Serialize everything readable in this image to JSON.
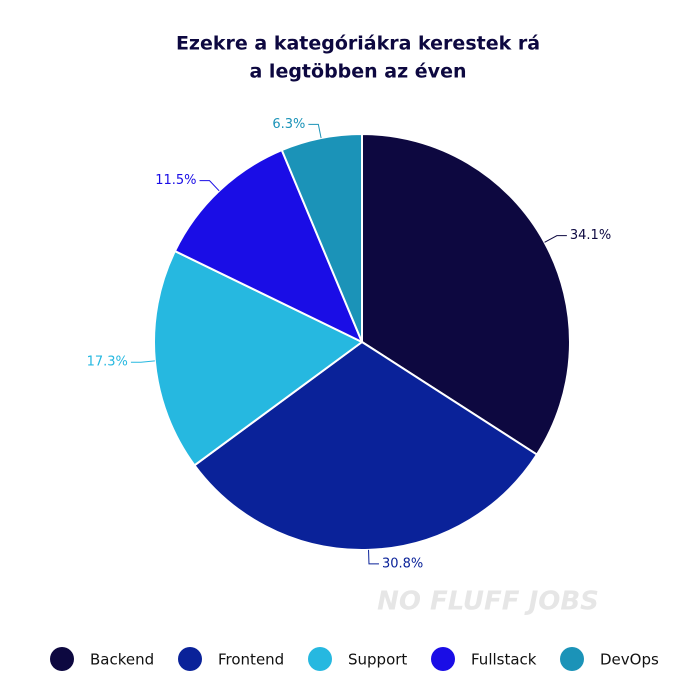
{
  "chart_data": {
    "type": "pie",
    "title": [
      "Ezekre a kategóriákra kerestek rá",
      "a legtöbben az éven"
    ],
    "categories": [
      "Backend",
      "Frontend",
      "Support",
      "Fullstack",
      "DevOps"
    ],
    "values": [
      34.1,
      30.8,
      17.3,
      11.5,
      6.3
    ],
    "value_labels": [
      "34.1%",
      "30.8%",
      "17.3%",
      "11.5%",
      "6.3%"
    ],
    "colors": [
      "#0d0840",
      "#0a2299",
      "#26b8e0",
      "#1a0de6",
      "#1b93b8"
    ],
    "legend": "bottom",
    "watermark": "NO FLUFF JOBS"
  }
}
